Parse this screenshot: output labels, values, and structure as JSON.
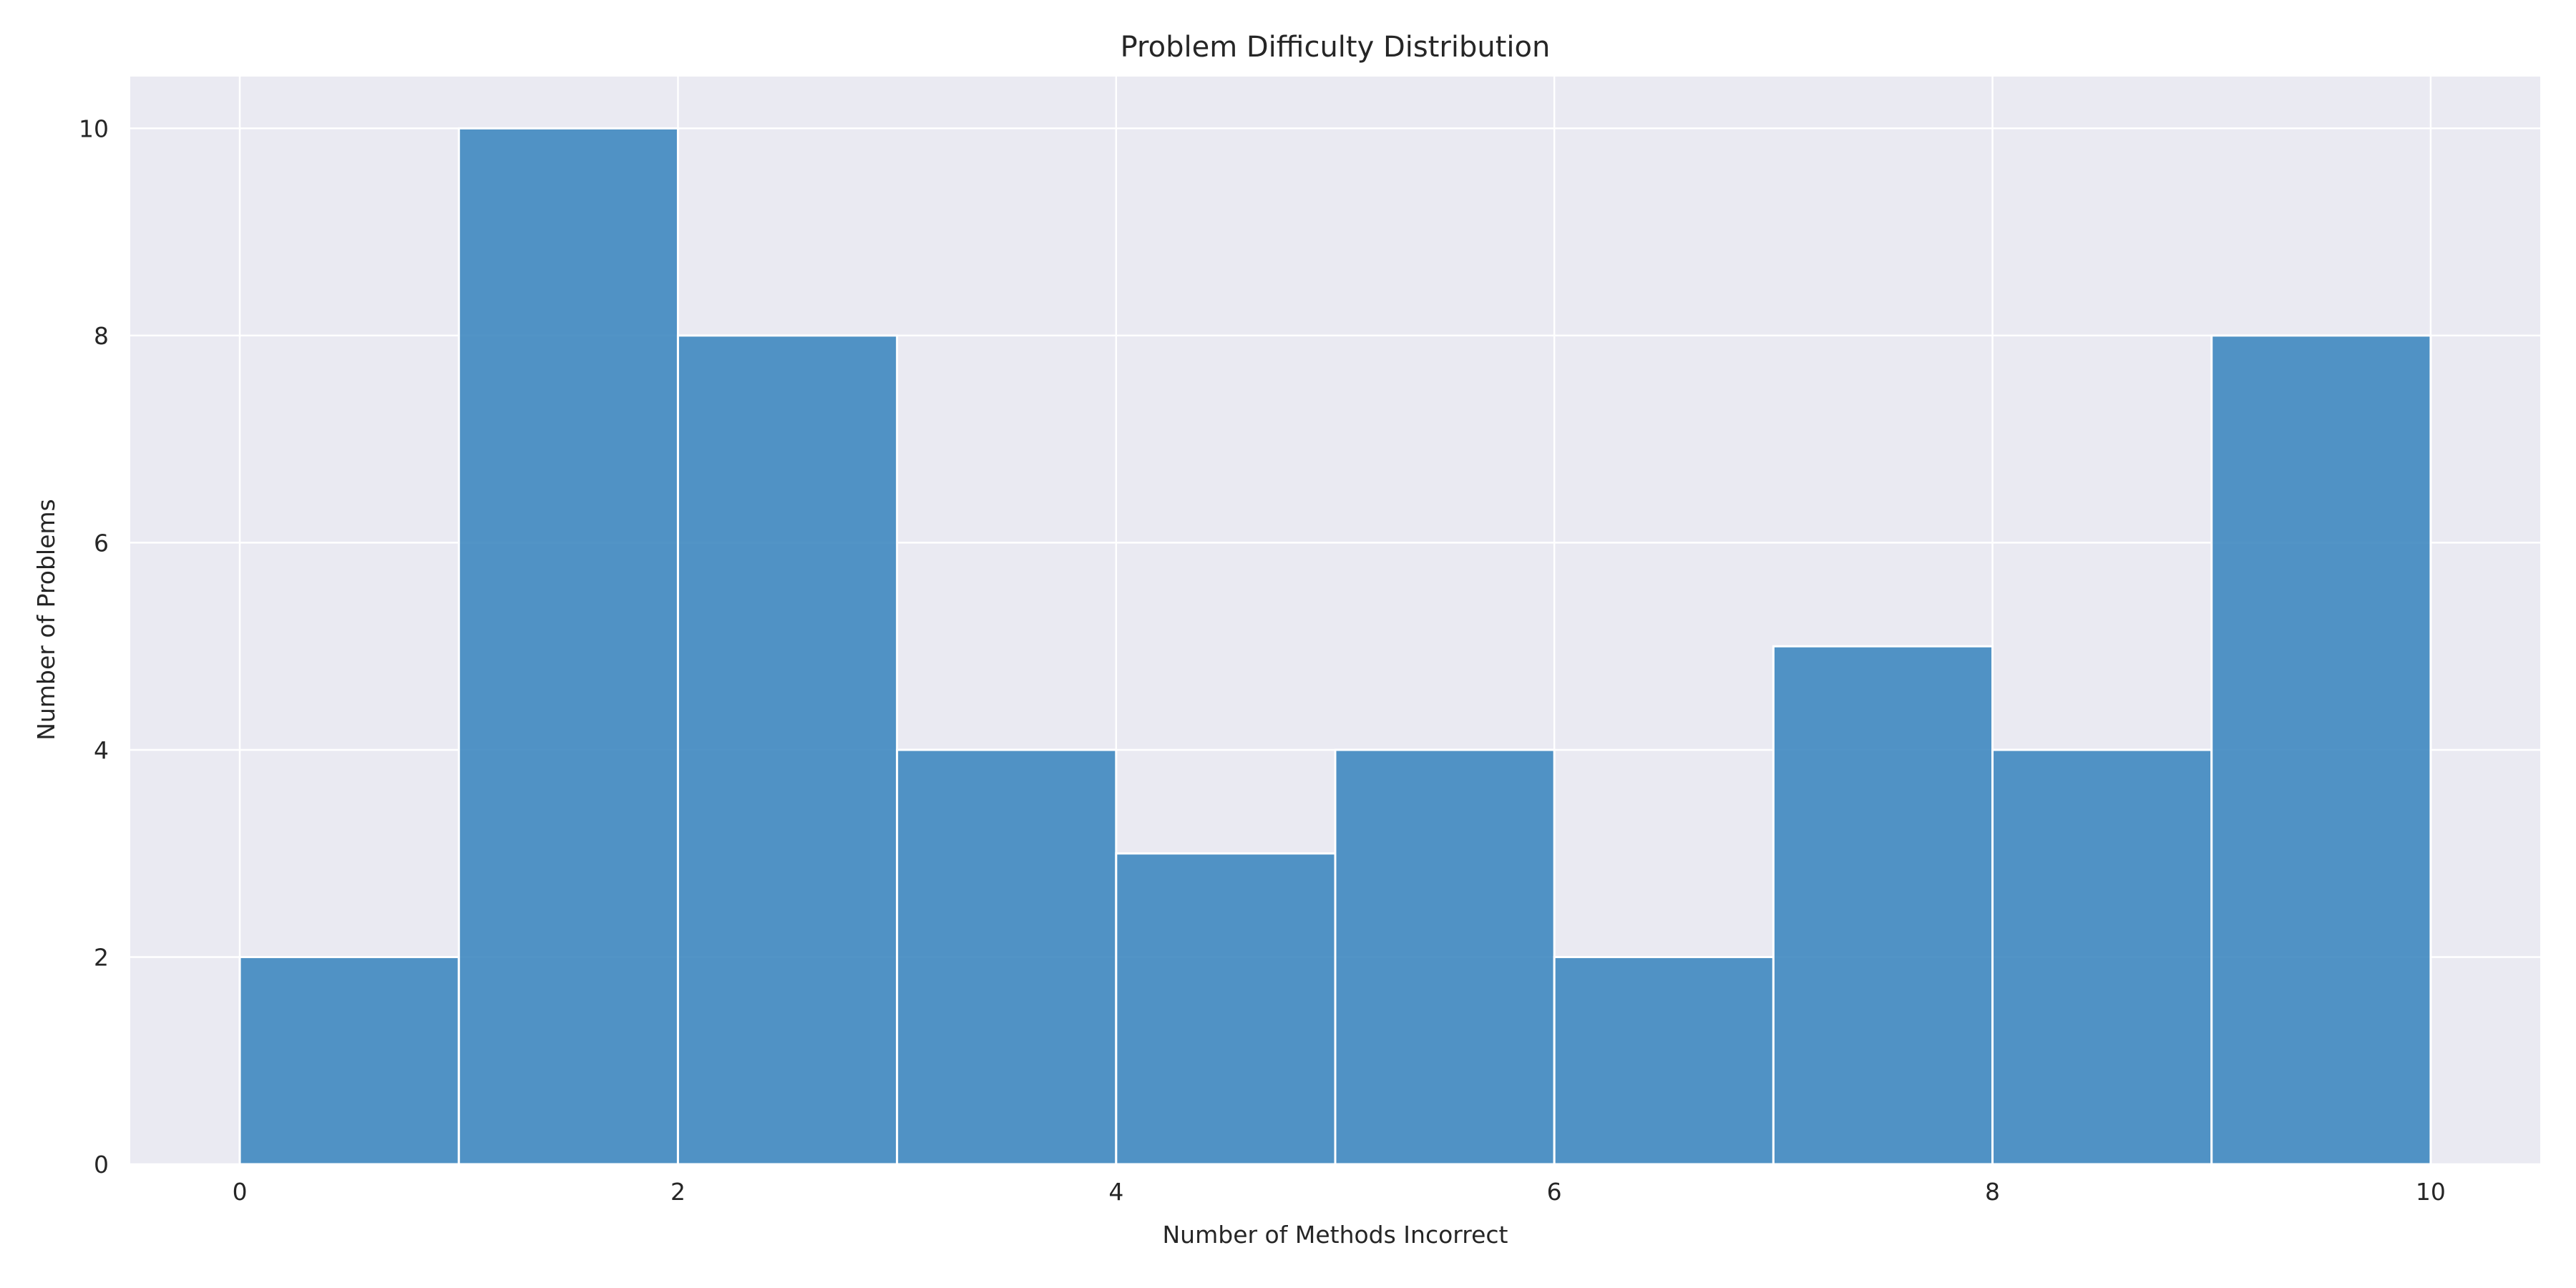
{
  "chart_data": {
    "type": "bar",
    "title": "Problem Difficulty Distribution",
    "xlabel": "Number of Methods Incorrect",
    "ylabel": "Number of Problems",
    "bins": [
      {
        "start": 0,
        "end": 1,
        "value": 2
      },
      {
        "start": 1,
        "end": 2,
        "value": 10
      },
      {
        "start": 2,
        "end": 3,
        "value": 8
      },
      {
        "start": 3,
        "end": 4,
        "value": 4
      },
      {
        "start": 4,
        "end": 5,
        "value": 3
      },
      {
        "start": 5,
        "end": 6,
        "value": 4
      },
      {
        "start": 6,
        "end": 7,
        "value": 2
      },
      {
        "start": 7,
        "end": 8,
        "value": 5
      },
      {
        "start": 8,
        "end": 9,
        "value": 4
      },
      {
        "start": 9,
        "end": 10,
        "value": 8
      }
    ],
    "xlim": [
      -0.5,
      10.5
    ],
    "ylim": [
      0,
      10.5
    ],
    "x_ticks": [
      0,
      2,
      4,
      6,
      8,
      10
    ],
    "x_tick_labels": [
      "0",
      "2",
      "4",
      "6",
      "8",
      "10"
    ],
    "y_ticks": [
      0,
      2,
      4,
      6,
      8,
      10
    ],
    "y_tick_labels": [
      "0",
      "2",
      "4",
      "6",
      "8",
      "10"
    ],
    "grid": true,
    "legend": "none",
    "colors": {
      "bar": "#3f88c0",
      "plot_background": "#eaeaf2",
      "grid": "#ffffff",
      "bar_edge": "#ffffff"
    }
  }
}
